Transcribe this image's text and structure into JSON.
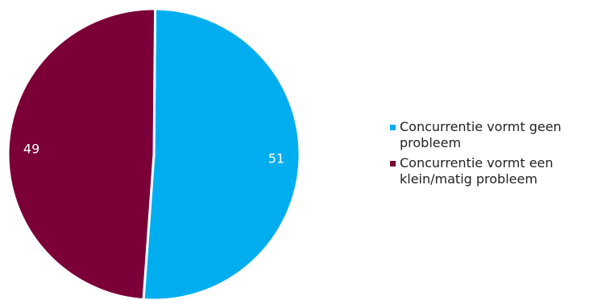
{
  "chart_data": {
    "type": "pie",
    "slices": [
      {
        "label": "Concurrentie vormt geen probleem",
        "value": 51,
        "color": "#00aeef"
      },
      {
        "label": "Concurrentie vormt een klein/matig probleem",
        "value": 49,
        "color": "#7a0037"
      }
    ],
    "legend_position": "right"
  },
  "legend": {
    "items": [
      {
        "line1": "Concurrentie vormt geen",
        "line2": "probleem",
        "color": "#00aeef"
      },
      {
        "line1": "Concurrentie vormt een",
        "line2": "klein/matig probleem",
        "color": "#7a0037"
      }
    ]
  }
}
